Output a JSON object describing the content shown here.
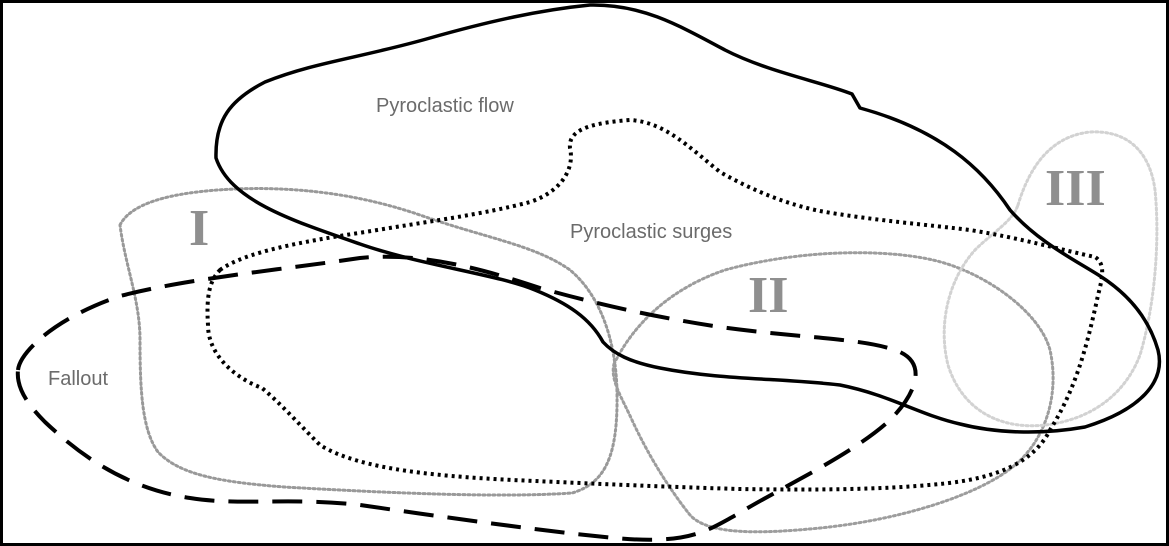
{
  "diagram": {
    "labels": {
      "pyroclastic_flow": "Pyroclastic flow",
      "pyroclastic_surges": "Pyroclastic surges",
      "fallout": "Fallout"
    },
    "groups": {
      "one": "I",
      "two": "II",
      "three": "III"
    }
  },
  "colors": {
    "frame": "#000000",
    "text": "#6b6b6b",
    "roman_text": "#8f8f8f",
    "group_one_line": "#999999",
    "group_two_line": "#9d9d9d",
    "group_three_line": "#d2d2d2"
  }
}
